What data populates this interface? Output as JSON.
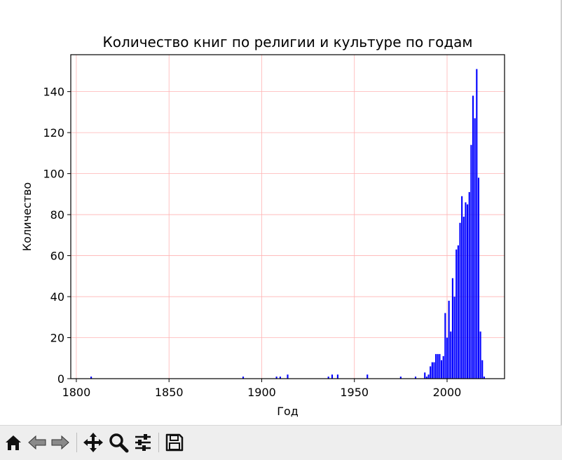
{
  "chart_data": {
    "type": "bar",
    "title": "Количество книг по религии и культуре по годам",
    "xlabel": "Год",
    "ylabel": "Количество",
    "xlim": [
      1797,
      2031
    ],
    "ylim": [
      0,
      158
    ],
    "xticks": [
      1800,
      1850,
      1900,
      1950,
      2000
    ],
    "yticks": [
      0,
      20,
      40,
      60,
      80,
      100,
      120,
      140
    ],
    "grid": true,
    "grid_color": "#ffb3b3",
    "bar_color": "#0000ff",
    "x": [
      1808,
      1890,
      1908,
      1910,
      1914,
      1936,
      1938,
      1941,
      1957,
      1975,
      1983,
      1988,
      1989,
      1990,
      1991,
      1992,
      1993,
      1994,
      1995,
      1996,
      1997,
      1998,
      1999,
      2000,
      2001,
      2002,
      2003,
      2004,
      2005,
      2006,
      2007,
      2008,
      2009,
      2010,
      2011,
      2012,
      2013,
      2014,
      2015,
      2016,
      2017,
      2018,
      2019,
      2020
    ],
    "values": [
      1,
      1,
      1,
      1,
      2,
      1,
      2,
      2,
      2,
      1,
      1,
      3,
      1,
      2,
      6,
      8,
      8,
      12,
      12,
      12,
      9,
      11,
      32,
      20,
      38,
      23,
      49,
      40,
      63,
      65,
      76,
      89,
      79,
      86,
      85,
      91,
      114,
      138,
      127,
      151,
      98,
      23,
      9,
      1
    ]
  },
  "toolbar": {
    "buttons": [
      {
        "icon": "home-icon"
      },
      {
        "icon": "back-arrow-icon"
      },
      {
        "icon": "forward-arrow-icon"
      },
      {
        "icon": "pan-icon"
      },
      {
        "icon": "zoom-icon"
      },
      {
        "icon": "configure-subplots-icon"
      },
      {
        "icon": "save-icon"
      }
    ]
  }
}
